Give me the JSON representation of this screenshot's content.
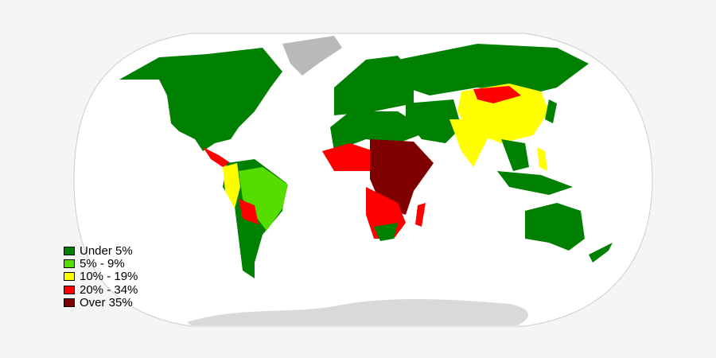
{
  "legend": {
    "items": [
      {
        "label": "Under 5%",
        "color": "#008000"
      },
      {
        "label": "5% - 9%",
        "color": "#55dd00"
      },
      {
        "label": "10% - 19%",
        "color": "#ffff00"
      },
      {
        "label": "20% - 34%",
        "color": "#ff0000"
      },
      {
        "label": "Over 35%",
        "color": "#7f0000"
      }
    ]
  },
  "map": {
    "ocean_color": "#ffffff",
    "no_data_color": "#b9b9b9",
    "antarctica_color": "#d9d9d9",
    "projection": "Robinson"
  }
}
